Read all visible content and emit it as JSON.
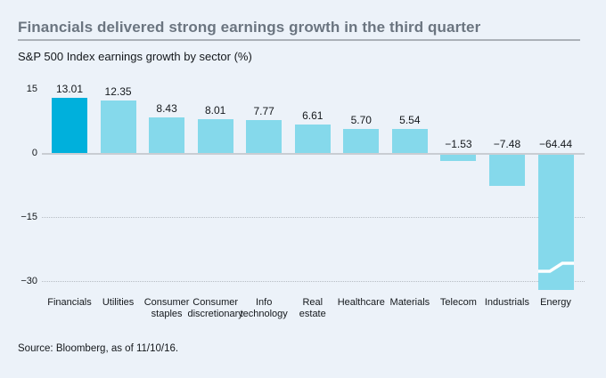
{
  "page": {
    "title": "Financials delivered strong earnings growth in the third quarter",
    "subtitle": "S&P 500 Index earnings growth by sector (%)",
    "source": "Source: Bloomberg, as of 11/10/16."
  },
  "colors": {
    "background": "#ecf2f9",
    "bar_highlight": "#00b0dc",
    "bar_default": "#85d9eb",
    "zero_line": "#c9cdd3",
    "gridline": "#b6bcc3",
    "title_text": "#6b7580",
    "title_rule": "#abb1b8",
    "text": "#14181c",
    "break_gap": "#ffffff"
  },
  "chart_data": {
    "type": "bar",
    "title": "Financials delivered strong earnings growth in the third quarter",
    "subtitle": "S&P 500 Index earnings growth by sector (%)",
    "source_note": "Source: Bloomberg, as of 11/10/16.",
    "categories": [
      "Financials",
      "Utilities",
      "Consumer staples",
      "Consumer discretionary",
      "Info technology",
      "Real estate",
      "Healthcare",
      "Materials",
      "Telecom",
      "Industrials",
      "Energy"
    ],
    "values": [
      13.01,
      12.35,
      8.43,
      8.01,
      7.77,
      6.61,
      5.7,
      5.54,
      -1.53,
      -7.48,
      -64.44
    ],
    "value_labels": [
      "13.01",
      "12.35",
      "8.43",
      "8.01",
      "7.77",
      "6.61",
      "5.70",
      "5.54",
      "−1.53",
      "−7.48",
      "−64.44"
    ],
    "highlight_index": 0,
    "yticks": [
      15,
      0,
      -15,
      -30
    ],
    "ytick_labels": [
      "15",
      "0",
      "−15",
      "−30"
    ],
    "ylim": [
      -32,
      15
    ],
    "grid": "dotted horizontal lines at -15 and -30, solid line at 0",
    "legend": "none",
    "axis_break": {
      "category": "Energy",
      "note": "bar truncated with white break marker below −30"
    }
  }
}
